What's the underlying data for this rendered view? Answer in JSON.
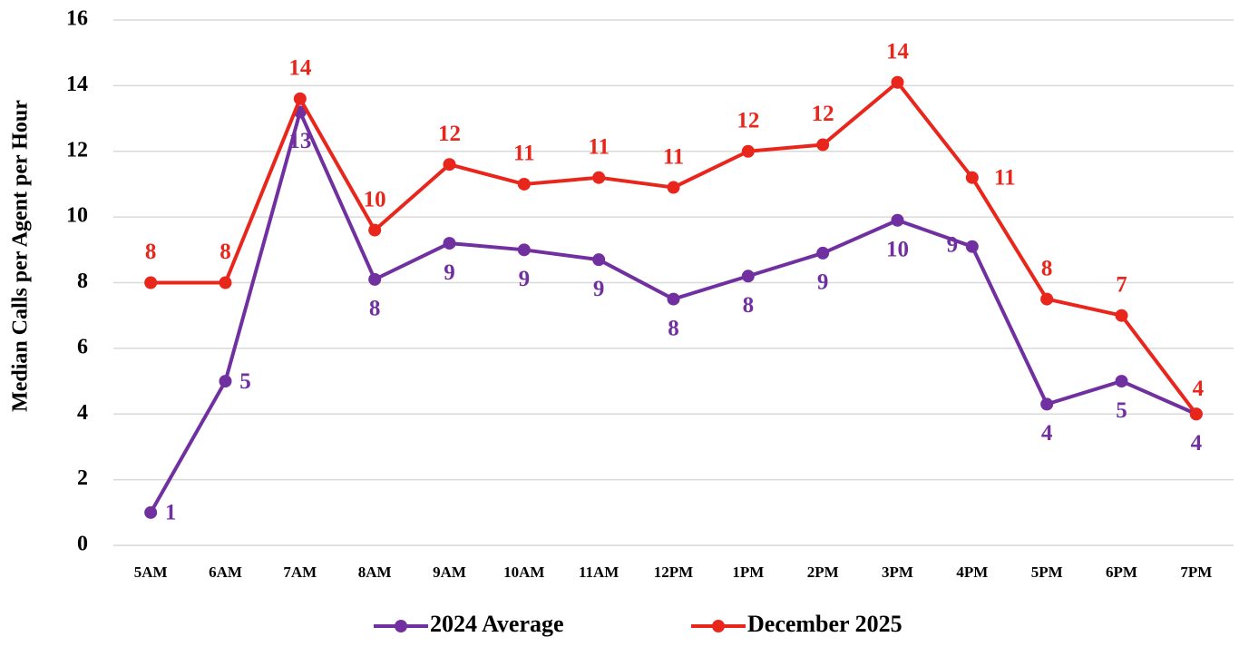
{
  "chart_data": {
    "type": "line",
    "y_label": "Median Calls per Agent per Hour",
    "categories": [
      "5AM",
      "6AM",
      "7AM",
      "8AM",
      "9AM",
      "10AM",
      "11AM",
      "12PM",
      "1PM",
      "2PM",
      "3PM",
      "4PM",
      "5PM",
      "6PM",
      "7PM"
    ],
    "series": [
      {
        "name": "2024 Average",
        "color": "#7030a0",
        "values": [
          1.0,
          5.0,
          13.2,
          8.1,
          9.2,
          9.0,
          8.7,
          7.5,
          8.2,
          8.9,
          9.9,
          9.1,
          4.3,
          5.0,
          4.0
        ],
        "value_labels": [
          "1",
          "5",
          "13",
          "8",
          "9",
          "9",
          "9",
          "8",
          "8",
          "9",
          "10",
          "9",
          "4",
          "5",
          "4"
        ]
      },
      {
        "name": "December 2025",
        "color": "#e8261c",
        "values": [
          8.0,
          8.0,
          13.6,
          9.6,
          11.6,
          11.0,
          11.2,
          10.9,
          12.0,
          12.2,
          14.1,
          11.2,
          7.5,
          7.0,
          4.0
        ],
        "value_labels": [
          "8",
          "8",
          "14",
          "10",
          "12",
          "11",
          "11",
          "11",
          "12",
          "12",
          "14",
          "11",
          "8",
          "7",
          "4"
        ]
      }
    ],
    "ylim": [
      0,
      16
    ],
    "yticks": [
      0,
      2,
      4,
      6,
      8,
      10,
      12,
      14,
      16
    ],
    "grid": true,
    "legend": "bottom"
  }
}
